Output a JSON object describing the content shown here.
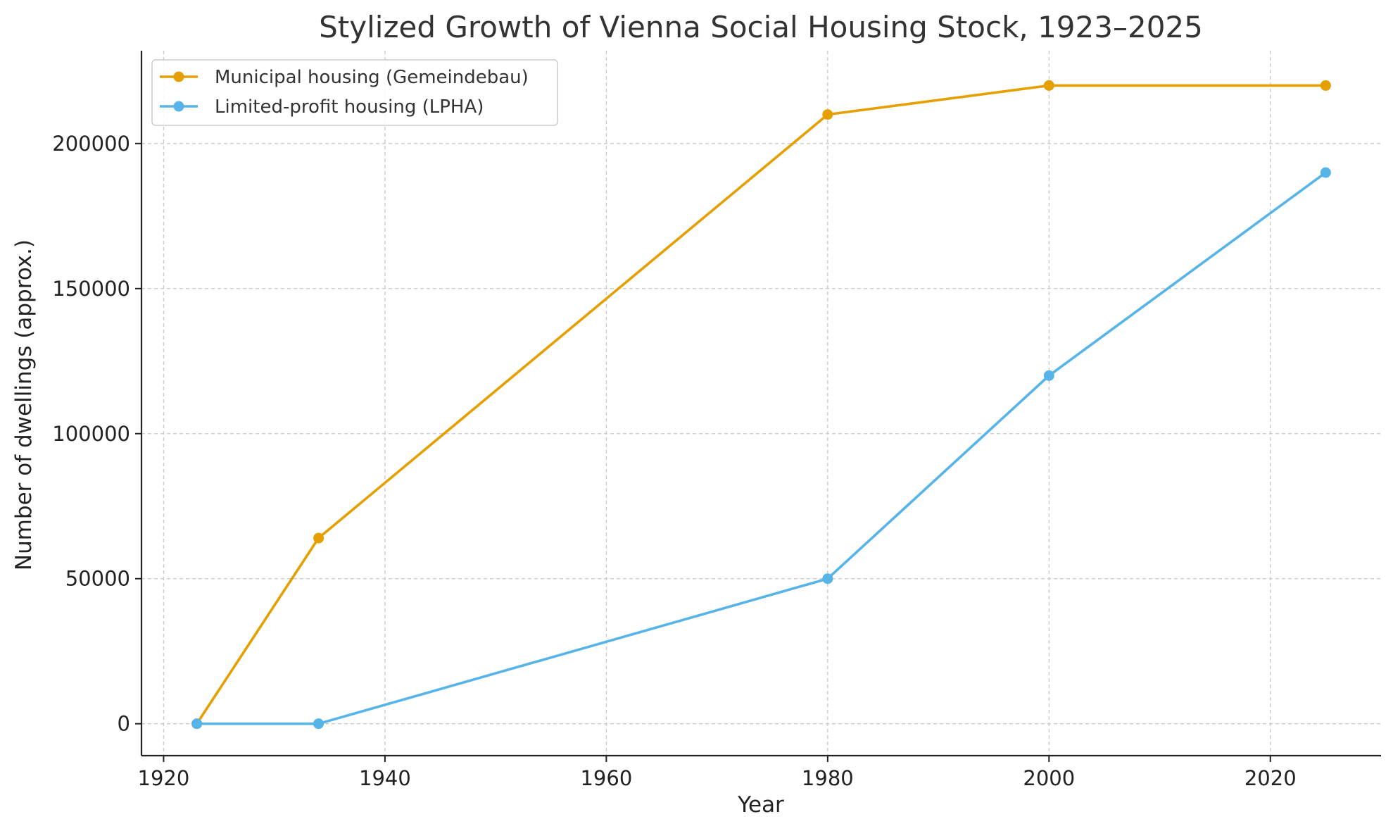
{
  "chart_data": {
    "type": "line",
    "title": "Stylized Growth of Vienna Social Housing Stock, 1923–2025",
    "xlabel": "Year",
    "ylabel": "Number of dwellings (approx.)",
    "xlim": [
      1918,
      2030
    ],
    "ylim": [
      -11000,
      232000
    ],
    "xticks": [
      1920,
      1940,
      1960,
      1980,
      2000,
      2020
    ],
    "yticks": [
      0,
      50000,
      100000,
      150000,
      200000
    ],
    "grid": true,
    "legend_position": "top-left",
    "series": [
      {
        "name": "Municipal housing (Gemeindebau)",
        "color": "#E69F00",
        "x": [
          1923,
          1934,
          1980,
          2000,
          2025
        ],
        "y": [
          0,
          64000,
          210000,
          220000,
          220000
        ]
      },
      {
        "name": "Limited-profit housing (LPHA)",
        "color": "#56B4E9",
        "x": [
          1923,
          1934,
          1980,
          2000,
          2025
        ],
        "y": [
          0,
          0,
          50000,
          120000,
          190000
        ]
      }
    ]
  }
}
